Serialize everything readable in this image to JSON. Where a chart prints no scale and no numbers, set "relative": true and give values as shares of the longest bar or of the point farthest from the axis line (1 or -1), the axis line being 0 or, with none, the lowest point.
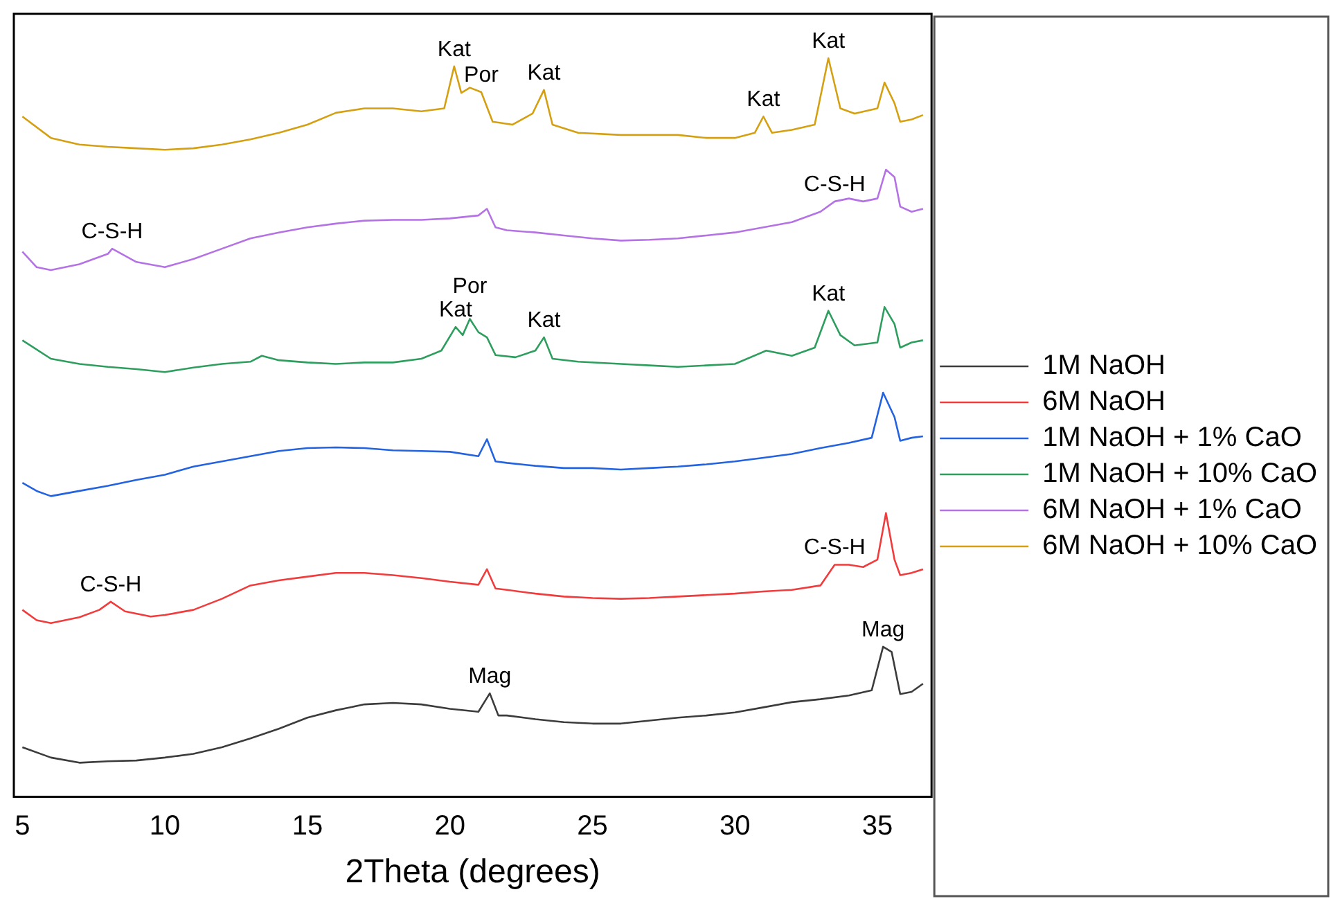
{
  "chart_data": {
    "type": "line",
    "xlabel": "2Theta (degrees)",
    "relative": true,
    "legend": "right",
    "xlim": [
      4.7,
      36.9
    ],
    "xticks": [
      5,
      10,
      15,
      20,
      25,
      30,
      35
    ],
    "series": [
      {
        "name": "1M NaOH",
        "color": "#3c3c3c",
        "x": [
          5,
          6,
          7,
          8,
          9,
          10,
          11,
          12,
          13,
          14,
          15,
          16,
          17,
          18,
          19,
          20,
          21,
          21.4,
          21.7,
          22,
          23,
          24,
          25,
          26,
          27,
          28,
          29,
          30,
          31,
          32,
          33,
          34,
          34.8,
          35.2,
          35.5,
          35.8,
          36.2,
          36.6
        ],
        "values": [
          0.067,
          0.053,
          0.046,
          0.048,
          0.049,
          0.053,
          0.058,
          0.067,
          0.079,
          0.092,
          0.107,
          0.117,
          0.125,
          0.127,
          0.125,
          0.119,
          0.115,
          0.14,
          0.11,
          0.11,
          0.105,
          0.101,
          0.099,
          0.099,
          0.103,
          0.107,
          0.11,
          0.114,
          0.121,
          0.128,
          0.132,
          0.137,
          0.144,
          0.203,
          0.196,
          0.139,
          0.142,
          0.153
        ]
      },
      {
        "name": "6M NaOH",
        "color": "#f03c3c",
        "x": [
          5,
          5.5,
          6,
          7,
          7.7,
          8.1,
          8.6,
          9.5,
          10,
          11,
          12,
          13,
          14,
          15,
          16,
          17,
          18,
          19,
          20,
          21,
          21.3,
          21.6,
          22,
          23,
          24,
          25,
          26,
          27,
          28,
          29,
          30,
          31,
          32,
          33,
          33.5,
          34,
          34.5,
          35,
          35.3,
          35.6,
          35.8,
          36.2,
          36.6
        ],
        "values": [
          0.253,
          0.239,
          0.235,
          0.243,
          0.253,
          0.264,
          0.251,
          0.244,
          0.246,
          0.253,
          0.268,
          0.286,
          0.293,
          0.298,
          0.303,
          0.303,
          0.3,
          0.296,
          0.291,
          0.287,
          0.308,
          0.282,
          0.28,
          0.275,
          0.271,
          0.269,
          0.268,
          0.269,
          0.271,
          0.273,
          0.275,
          0.278,
          0.28,
          0.286,
          0.314,
          0.314,
          0.311,
          0.321,
          0.384,
          0.321,
          0.3,
          0.303,
          0.308
        ]
      },
      {
        "name": "1M NaOH + 1% CaO",
        "color": "#2463e0",
        "x": [
          5,
          5.5,
          6,
          7,
          8,
          9,
          10,
          11,
          12,
          13,
          14,
          15,
          16,
          17,
          18,
          19,
          20,
          21,
          21.3,
          21.6,
          22,
          23,
          24,
          25,
          26,
          27,
          28,
          29,
          30,
          31,
          32,
          33,
          34,
          34.8,
          35.2,
          35.6,
          35.8,
          36.2,
          36.6
        ],
        "values": [
          0.425,
          0.414,
          0.407,
          0.414,
          0.421,
          0.429,
          0.436,
          0.447,
          0.454,
          0.461,
          0.468,
          0.472,
          0.473,
          0.472,
          0.469,
          0.468,
          0.467,
          0.461,
          0.484,
          0.454,
          0.452,
          0.448,
          0.445,
          0.445,
          0.443,
          0.445,
          0.447,
          0.45,
          0.454,
          0.459,
          0.464,
          0.472,
          0.479,
          0.486,
          0.547,
          0.514,
          0.482,
          0.486,
          0.488
        ]
      },
      {
        "name": "1M NaOH + 10% CaO",
        "color": "#2e9e5e",
        "x": [
          5,
          6,
          7,
          8,
          9,
          10,
          11,
          12,
          13,
          13.4,
          14,
          15,
          16,
          17,
          18,
          19,
          19.7,
          20.2,
          20.45,
          20.7,
          21.0,
          21.3,
          21.6,
          22.3,
          23.0,
          23.3,
          23.6,
          24.5,
          26,
          27,
          28,
          29,
          30,
          31.1,
          32,
          32.8,
          33.28,
          33.7,
          34.2,
          35.0,
          35.25,
          35.6,
          35.8,
          36.2,
          36.6
        ],
        "values": [
          0.618,
          0.593,
          0.586,
          0.582,
          0.579,
          0.575,
          0.581,
          0.586,
          0.589,
          0.597,
          0.591,
          0.588,
          0.586,
          0.588,
          0.588,
          0.593,
          0.604,
          0.636,
          0.625,
          0.647,
          0.629,
          0.622,
          0.598,
          0.595,
          0.604,
          0.622,
          0.593,
          0.589,
          0.586,
          0.584,
          0.582,
          0.584,
          0.586,
          0.604,
          0.597,
          0.608,
          0.658,
          0.625,
          0.611,
          0.615,
          0.663,
          0.64,
          0.608,
          0.615,
          0.618
        ]
      },
      {
        "name": "6M NaOH + 1% CaO",
        "color": "#b472e4",
        "x": [
          5,
          5.5,
          6,
          7,
          8,
          8.15,
          9,
          10,
          11,
          12,
          13,
          14,
          15,
          16,
          17,
          18,
          19,
          20,
          21,
          21.3,
          21.6,
          22,
          23,
          24,
          25,
          26,
          27,
          28,
          29,
          30,
          31,
          32,
          33,
          33.5,
          34,
          34.5,
          35,
          35.3,
          35.6,
          35.8,
          36.2,
          36.6
        ],
        "values": [
          0.738,
          0.717,
          0.713,
          0.721,
          0.735,
          0.742,
          0.724,
          0.717,
          0.728,
          0.742,
          0.756,
          0.764,
          0.771,
          0.776,
          0.78,
          0.781,
          0.781,
          0.783,
          0.787,
          0.796,
          0.771,
          0.767,
          0.764,
          0.76,
          0.756,
          0.753,
          0.754,
          0.756,
          0.76,
          0.764,
          0.771,
          0.778,
          0.792,
          0.806,
          0.81,
          0.806,
          0.81,
          0.849,
          0.839,
          0.799,
          0.792,
          0.796
        ]
      },
      {
        "name": "6M NaOH + 10% CaO",
        "color": "#d4a012",
        "x": [
          5,
          6,
          7,
          8,
          9,
          10,
          11,
          12,
          13,
          14,
          15,
          16,
          17,
          18,
          19,
          19.8,
          20.15,
          20.4,
          20.7,
          21.1,
          21.5,
          22.2,
          22.9,
          23.3,
          23.6,
          24.5,
          26,
          27,
          28,
          29,
          30,
          30.7,
          31.0,
          31.3,
          32,
          32.8,
          33.28,
          33.7,
          34.2,
          35.0,
          35.25,
          35.6,
          35.8,
          36.2,
          36.6
        ],
        "values": [
          0.921,
          0.892,
          0.883,
          0.88,
          0.878,
          0.876,
          0.878,
          0.883,
          0.89,
          0.899,
          0.91,
          0.926,
          0.932,
          0.932,
          0.928,
          0.932,
          0.989,
          0.953,
          0.96,
          0.954,
          0.914,
          0.91,
          0.925,
          0.957,
          0.91,
          0.899,
          0.896,
          0.896,
          0.896,
          0.892,
          0.892,
          0.899,
          0.921,
          0.899,
          0.903,
          0.91,
          1,
          0.932,
          0.925,
          0.932,
          0.967,
          0.939,
          0.914,
          0.917,
          0.923
        ]
      }
    ],
    "annotations": [
      {
        "text": "Kat",
        "x": 20.15,
        "y": 0.989
      },
      {
        "text": "Por",
        "x": 21.1,
        "y": 0.954
      },
      {
        "text": "Kat",
        "x": 23.3,
        "y": 0.957
      },
      {
        "text": "Kat",
        "x": 31.0,
        "y": 0.921
      },
      {
        "text": "Kat",
        "x": 33.28,
        "y": 1
      },
      {
        "text": "C-S-H",
        "x": 8.15,
        "y": 0.742
      },
      {
        "text": "C-S-H",
        "x": 33.5,
        "y": 0.806
      },
      {
        "text": "Kat",
        "x": 20.2,
        "y": 0.636
      },
      {
        "text": "Por",
        "x": 20.7,
        "y": 0.647
      },
      {
        "text": "Kat",
        "x": 23.3,
        "y": 0.622
      },
      {
        "text": "Kat",
        "x": 33.28,
        "y": 0.658
      },
      {
        "text": "C-S-H",
        "x": 8.1,
        "y": 0.264
      },
      {
        "text": "C-S-H",
        "x": 33.5,
        "y": 0.314
      },
      {
        "text": "Mag",
        "x": 21.4,
        "y": 0.14
      },
      {
        "text": "Mag",
        "x": 35.2,
        "y": 0.203
      }
    ]
  }
}
